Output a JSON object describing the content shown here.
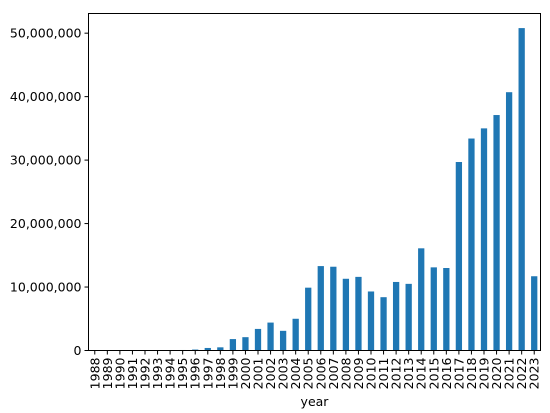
{
  "chart_data": {
    "type": "bar",
    "xlabel": "year",
    "ylabel": "",
    "ylim": [
      0,
      53100000
    ],
    "yticks": [
      0,
      10000000,
      20000000,
      30000000,
      40000000,
      50000000
    ],
    "ytick_labels": [
      "0",
      "10,000,000",
      "20,000,000",
      "30,000,000",
      "40,000,000",
      "50,000,000"
    ],
    "bar_color": "#1f77b4",
    "grid": false,
    "legend": "none",
    "categories": [
      "1988",
      "1989",
      "1990",
      "1991",
      "1992",
      "1993",
      "1994",
      "1995",
      "1996",
      "1997",
      "1998",
      "1999",
      "2000",
      "2001",
      "2002",
      "2003",
      "2004",
      "2005",
      "2006",
      "2007",
      "2008",
      "2009",
      "2010",
      "2011",
      "2012",
      "2013",
      "2014",
      "2015",
      "2016",
      "2017",
      "2018",
      "2019",
      "2020",
      "2021",
      "2022",
      "2023"
    ],
    "values": [
      20000,
      20000,
      30000,
      30000,
      40000,
      50000,
      60000,
      80000,
      150000,
      400000,
      500000,
      1800000,
      2100000,
      3400000,
      4400000,
      3100000,
      5000000,
      9900000,
      13300000,
      13200000,
      11300000,
      11600000,
      9300000,
      8400000,
      10800000,
      10500000,
      16100000,
      13100000,
      13000000,
      29700000,
      33400000,
      35000000,
      37100000,
      40700000,
      50800000,
      11700000
    ]
  }
}
